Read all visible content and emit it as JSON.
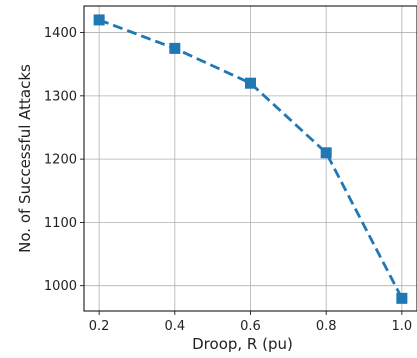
{
  "chart_data": {
    "type": "line",
    "title": "",
    "xlabel": "Droop, R (pu)",
    "ylabel": "No. of Successful Attacks",
    "x": [
      0.2,
      0.4,
      0.6,
      0.8,
      1.0
    ],
    "series": [
      {
        "values": [
          1420,
          1375,
          1320,
          1210,
          980
        ]
      }
    ],
    "xticks": [
      "0.2",
      "0.4",
      "0.6",
      "0.8",
      "1.0"
    ],
    "yticks": [
      "1000",
      "1100",
      "1200",
      "1300",
      "1400"
    ],
    "xlim": [
      0.16,
      1.04
    ],
    "ylim": [
      960,
      1442
    ],
    "grid": true,
    "line_style": "dashed",
    "marker": "square",
    "color": "#1f77b4"
  }
}
